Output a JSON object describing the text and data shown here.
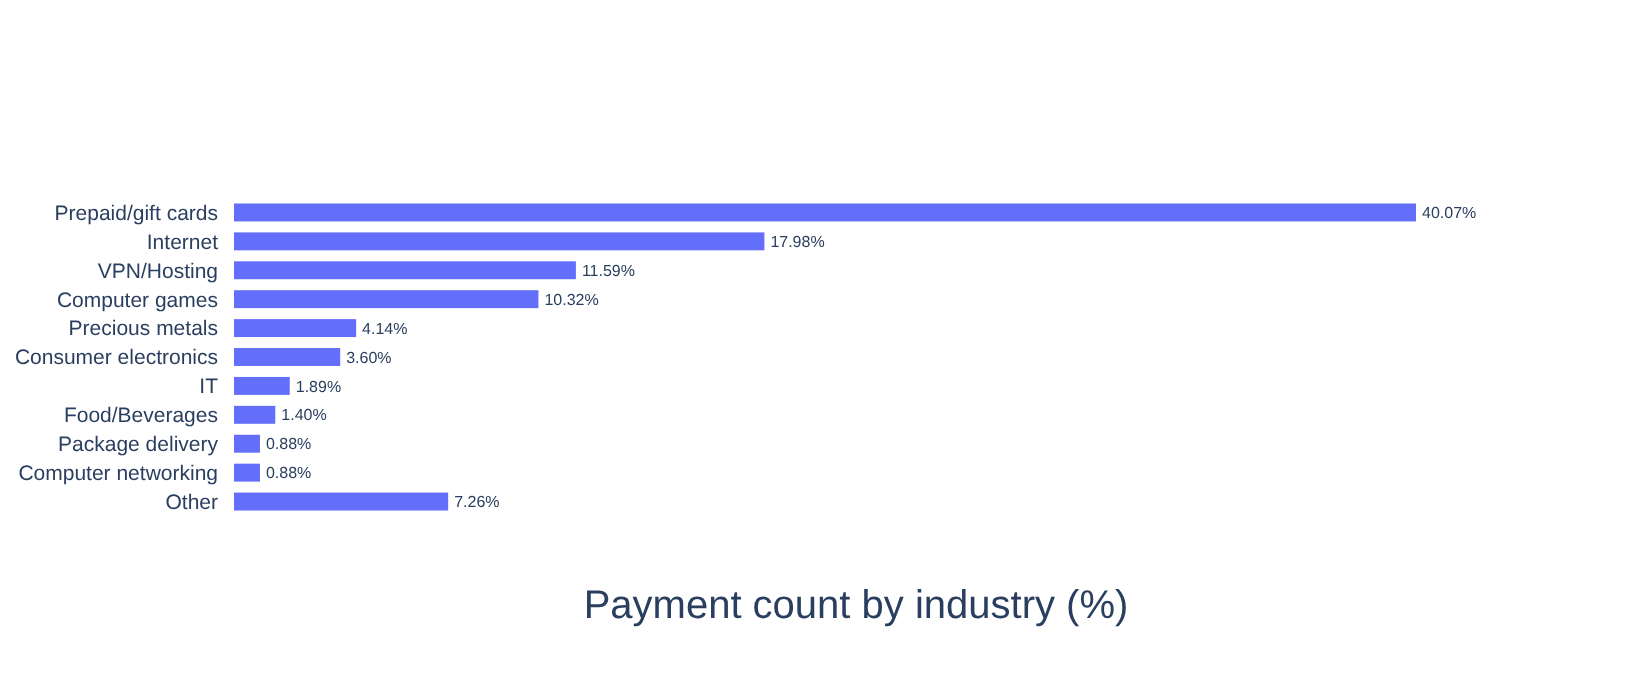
{
  "chart_data": {
    "type": "bar",
    "orientation": "horizontal",
    "title": "Payment count by industry (%)",
    "categories": [
      "Prepaid/gift cards",
      "Internet",
      "VPN/Hosting",
      "Computer games",
      "Precious metals",
      "Consumer electronics",
      "IT",
      "Food/Beverages",
      "Package delivery",
      "Computer networking",
      "Other"
    ],
    "values": [
      40.07,
      17.98,
      11.59,
      10.32,
      4.14,
      3.6,
      1.89,
      1.4,
      0.88,
      0.88,
      7.26
    ],
    "value_labels": [
      "40.07%",
      "17.98%",
      "11.59%",
      "10.32%",
      "4.14%",
      "3.60%",
      "1.89%",
      "1.40%",
      "0.88%",
      "0.88%",
      "7.26%"
    ],
    "color": "#636efa",
    "tick_labels": "y"
  }
}
